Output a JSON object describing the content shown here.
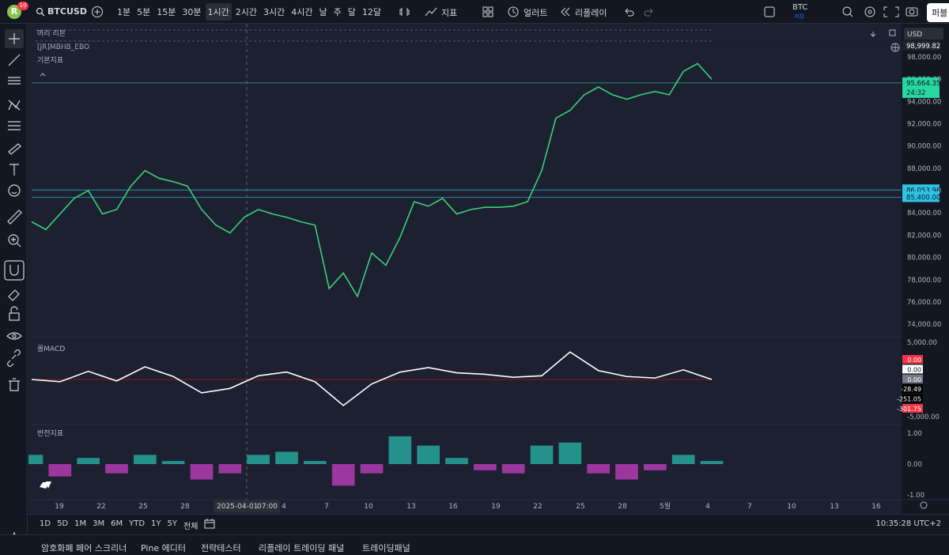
{
  "toolbar": {
    "avatar": "R",
    "badge": "10",
    "symbol": "BTCUSD",
    "intervals": [
      "1분",
      "5분",
      "15분",
      "30분",
      "1시간",
      "2시간",
      "3시간",
      "4시간",
      "날",
      "주",
      "달",
      "12달"
    ],
    "indicators": "지표",
    "alert": "얼러트",
    "replay": "리플레이",
    "ticker": "BTC",
    "save": "저장",
    "publish": "퍼블"
  },
  "legend": {
    "ribbon": "머리 리본",
    "study": "[JR]MBHB_EBO",
    "basic": "기본지표"
  },
  "currency": "USD",
  "price_chart": {
    "type": "line",
    "color": "#3ad07a",
    "values": [
      83200,
      82500,
      83900,
      85300,
      86000,
      83900,
      84300,
      86400,
      87800,
      87100,
      86800,
      86400,
      84300,
      82900,
      82200,
      83600,
      84300,
      83900,
      83600,
      83200,
      82900,
      77200,
      78600,
      76500,
      80400,
      79300,
      81800,
      85000,
      84600,
      85300,
      83900,
      84300,
      84500,
      84500,
      84600,
      85000,
      87800,
      92500,
      93200,
      94600,
      95300,
      94600,
      94200,
      94600,
      94900,
      94600,
      96700,
      97400,
      96000
    ],
    "ylim": [
      73300,
      100980
    ],
    "yticks": [
      {
        "value": 98000,
        "label": "98,000.00"
      },
      {
        "value": 96000,
        "label": "96,000.00"
      },
      {
        "value": 94000,
        "label": "94,000.00"
      },
      {
        "value": 92000,
        "label": "92,000.00"
      },
      {
        "value": 90000,
        "label": "90,000.00"
      },
      {
        "value": 88000,
        "label": "88,000.00"
      },
      {
        "value": 86000,
        "label": "86,000.00"
      },
      {
        "value": 84000,
        "label": "84,000.00"
      },
      {
        "value": 82000,
        "label": "82,000.00"
      },
      {
        "value": 80000,
        "label": "80,000.00"
      },
      {
        "value": 78000,
        "label": "78,000.00"
      },
      {
        "value": 76000,
        "label": "76,000.00"
      },
      {
        "value": 74000,
        "label": "74,000.00"
      }
    ],
    "markers": [
      {
        "value": 98999.82,
        "label": "98,999.82",
        "color": "#1e222d"
      },
      {
        "value": 95664.35,
        "label": "95,664.35",
        "color": "#26d7a0",
        "sub": "24:32"
      },
      {
        "value": 86053.96,
        "label": "86,053.96",
        "color": "#2ec4e6"
      },
      {
        "value": 85400,
        "label": "85,400.00",
        "color": "#2ec4e6"
      }
    ]
  },
  "macd": {
    "title": "롤MACD",
    "type": "line",
    "color": "#ffffff",
    "values": [
      0,
      -300,
      1100,
      -200,
      1700,
      400,
      -1800,
      -1200,
      500,
      1000,
      -300,
      -3500,
      -600,
      1000,
      1600,
      900,
      700,
      300,
      500,
      3700,
      1200,
      400,
      200,
      1300,
      0
    ],
    "ylim": [
      -5850,
      5320
    ],
    "yticks": [
      {
        "value": 5000,
        "label": "5,000.00"
      },
      {
        "value": -5000,
        "label": "-5,000.00"
      }
    ],
    "badges": [
      "0.00",
      "0.00",
      "0.00",
      "-28.49",
      "-251.05",
      "-301.75"
    ]
  },
  "reversal": {
    "title": "반전지표",
    "type": "bar",
    "positive_color": "#26a69a",
    "negative_color": "#b43cb4",
    "values": [
      0.3,
      -0.4,
      0.2,
      -0.3,
      0.3,
      0.1,
      -0.5,
      -0.3,
      0.3,
      0.4,
      0.1,
      -0.7,
      -0.3,
      0.9,
      0.6,
      0.2,
      -0.2,
      -0.3,
      0.6,
      0.7,
      -0.3,
      -0.5,
      -0.2,
      0.3,
      0.1
    ],
    "ylim": [
      -1.23,
      1.205
    ],
    "yticks": [
      {
        "value": 1,
        "label": "1.00"
      },
      {
        "value": 0,
        "label": "0.00"
      },
      {
        "value": -1,
        "label": "-1.00"
      }
    ]
  },
  "time_axis": {
    "labels": [
      "19",
      "22",
      "25",
      "28",
      "4",
      "7",
      "10",
      "13",
      "16",
      "19",
      "22",
      "25",
      "28",
      "5월",
      "4",
      "7",
      "10",
      "13",
      "16"
    ],
    "crosshair_date": "2025-04-01",
    "crosshair_time": "07:00"
  },
  "ranges": [
    "1D",
    "5D",
    "1M",
    "3M",
    "6M",
    "YTD",
    "1Y",
    "5Y",
    "전체"
  ],
  "clock": "10:35:28 UTC+2",
  "tabs": [
    "암호화폐 페어 스크리너",
    "Pine 에디터",
    "전략테스터",
    "리플레이 트레이딩 패널",
    "트레이딩패널"
  ]
}
